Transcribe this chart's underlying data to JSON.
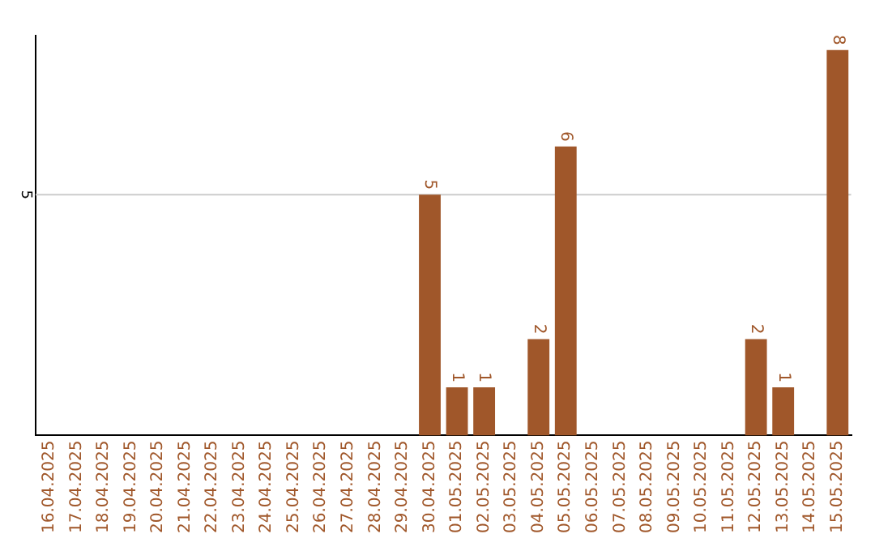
{
  "chart_data": {
    "type": "bar",
    "categories": [
      "16.04.2025",
      "17.04.2025",
      "18.04.2025",
      "19.04.2025",
      "20.04.2025",
      "21.04.2025",
      "22.04.2025",
      "23.04.2025",
      "24.04.2025",
      "25.04.2025",
      "26.04.2025",
      "27.04.2025",
      "28.04.2025",
      "29.04.2025",
      "30.04.2025",
      "01.05.2025",
      "02.05.2025",
      "03.05.2025",
      "04.05.2025",
      "05.05.2025",
      "06.05.2025",
      "07.05.2025",
      "08.05.2025",
      "09.05.2025",
      "10.05.2025",
      "11.05.2025",
      "12.05.2025",
      "13.05.2025",
      "14.05.2025",
      "15.05.2025"
    ],
    "values": [
      null,
      null,
      null,
      null,
      null,
      null,
      null,
      null,
      null,
      null,
      null,
      null,
      null,
      null,
      5,
      1,
      1,
      null,
      2,
      6,
      null,
      null,
      null,
      null,
      null,
      null,
      2,
      1,
      null,
      8
    ],
    "data_labels": true,
    "color": "#a0572a",
    "ylim": [
      0,
      8.3
    ],
    "ref_lines": [
      {
        "axis": "y",
        "value": 5,
        "label": "5",
        "color": "#cccccc"
      }
    ],
    "legend": false
  }
}
